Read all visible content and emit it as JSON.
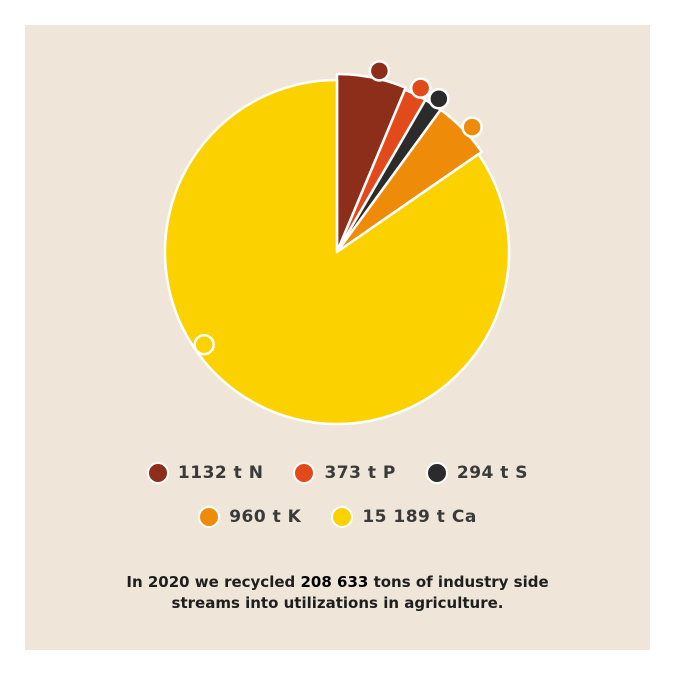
{
  "chart_data": {
    "type": "pie",
    "slices": [
      {
        "label": "1132 t N",
        "value": 1132,
        "color": "#8d2e1a"
      },
      {
        "label": "373 t P",
        "value": 373,
        "color": "#e24a1b"
      },
      {
        "label": "294 t S",
        "value": 294,
        "color": "#2b2b2b"
      },
      {
        "label": "960 t K",
        "value": 960,
        "color": "#ee8c0a"
      },
      {
        "label": "15 189 t Ca",
        "value": 15189,
        "color": "#fbd200"
      }
    ],
    "legend_placement": "bottom",
    "background_color": "#efe5d9"
  },
  "caption": {
    "before": "In 2020 we recycled ",
    "highlight": "208 633",
    "after_line1": " tons of industry side",
    "line2": "streams into utilizations in agriculture."
  }
}
